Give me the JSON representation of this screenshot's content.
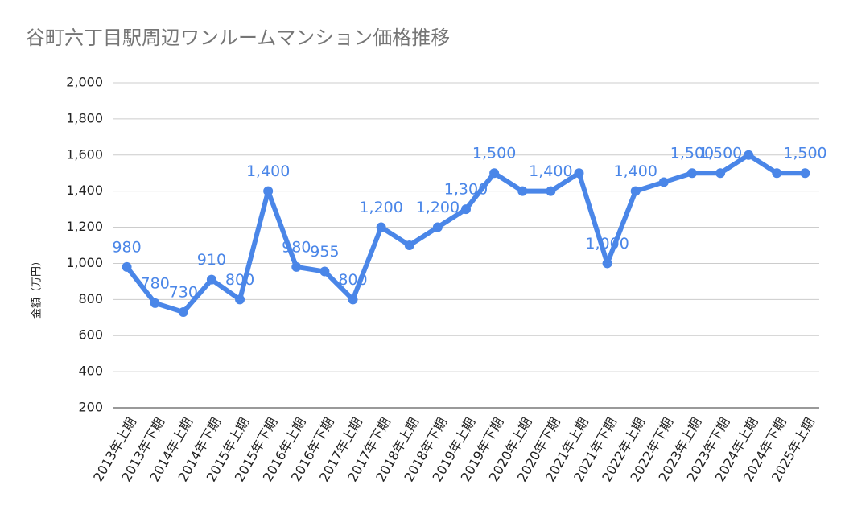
{
  "chart_data": {
    "type": "line",
    "title": "谷町六丁目駅周辺ワンルームマンション価格推移",
    "y_label": "金額（万円）",
    "categories": [
      "2013年上期",
      "2013年下期",
      "2014年上期",
      "2014年下期",
      "2015年上期",
      "2015年下期",
      "2016年上期",
      "2016年下期",
      "2017年上期",
      "2017年下期",
      "2018年上期",
      "2018年下期",
      "2019年上期",
      "2019年下期",
      "2020年上期",
      "2020年下期",
      "2021年上期",
      "2021年下期",
      "2022年上期",
      "2022年下期",
      "2023年上期",
      "2023年下期",
      "2024年上期",
      "2024年下期",
      "2025年上期"
    ],
    "series": [
      {
        "name": "価格",
        "color": "#4a86e8",
        "values": [
          980,
          780,
          730,
          910,
          800,
          1400,
          980,
          955,
          800,
          1200,
          1100,
          1200,
          1300,
          1500,
          1400,
          1400,
          1500,
          1000,
          1400,
          1450,
          1500,
          1500,
          1600,
          1500,
          1500
        ],
        "value_labels": [
          "980",
          "780",
          "730",
          "910",
          "800",
          "1,400",
          "980",
          "955",
          "800",
          "1,200",
          null,
          "1,200",
          "1,300",
          "1,500",
          null,
          "1,400",
          null,
          "1,000",
          "1,400",
          null,
          "1,500",
          "1,500",
          null,
          null,
          "1,500"
        ]
      }
    ],
    "ylim": [
      200,
      2000
    ],
    "yticks": [
      200,
      400,
      600,
      800,
      {
        "value": 1000,
        "label": "1,000"
      },
      {
        "value": 1200,
        "label": "1,200"
      },
      {
        "value": 1400,
        "label": "1,400"
      },
      {
        "value": 1600,
        "label": "1,600"
      },
      {
        "value": 1800,
        "label": "1,800"
      },
      {
        "value": 2000,
        "label": "2,000"
      }
    ],
    "grid": true
  }
}
